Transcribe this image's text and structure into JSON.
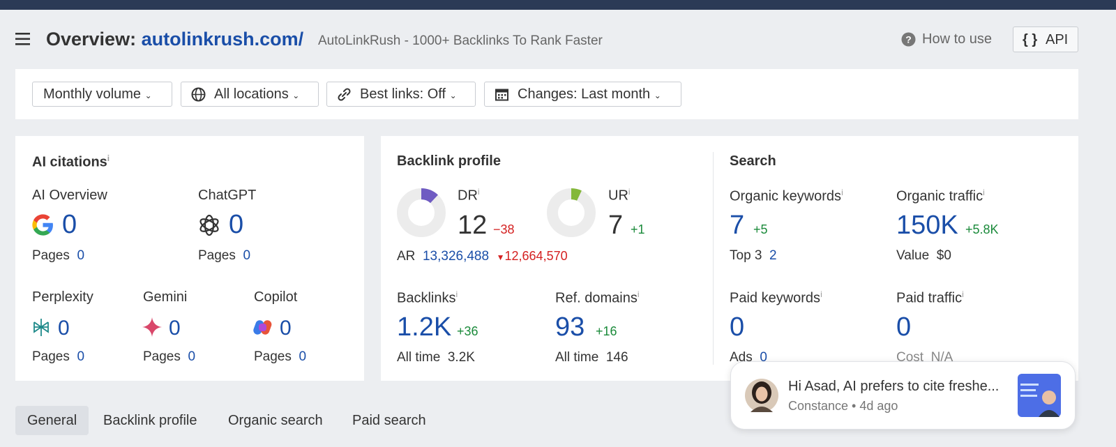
{
  "header": {
    "title_prefix": "Overview:",
    "domain": "autolinkrush.com/",
    "subtitle": "AutoLinkRush - 1000+ Backlinks To Rank Faster",
    "how_to_use": "How to use",
    "api": "API"
  },
  "info": "i",
  "filters": [
    "Monthly volume",
    "All locations",
    "Best links: Off",
    "Changes: Last month"
  ],
  "ai_citations": {
    "title": "AI citations",
    "items": [
      {
        "name": "AI Overview",
        "value": "0",
        "pages_label": "Pages",
        "pages": "0"
      },
      {
        "name": "ChatGPT",
        "value": "0",
        "pages_label": "Pages",
        "pages": "0"
      },
      {
        "name": "Perplexity",
        "value": "0",
        "pages_label": "Pages",
        "pages": "0"
      },
      {
        "name": "Gemini",
        "value": "0",
        "pages_label": "Pages",
        "pages": "0"
      },
      {
        "name": "Copilot",
        "value": "0",
        "pages_label": "Pages",
        "pages": "0"
      }
    ]
  },
  "backlink_profile": {
    "title": "Backlink profile",
    "dr": {
      "label": "DR",
      "value": 12,
      "change": "−38"
    },
    "ur": {
      "label": "UR",
      "value": 7,
      "change": "+1"
    },
    "ar": {
      "label": "AR",
      "value": "13,326,488",
      "change": "12,664,570"
    },
    "backlinks": {
      "label": "Backlinks",
      "value": "1.2K",
      "change": "+36",
      "sub_label": "All time",
      "sub_value": "3.2K"
    },
    "ref_domains": {
      "label": "Ref. domains",
      "value": "93",
      "change": "+16",
      "sub_label": "All time",
      "sub_value": "146"
    }
  },
  "search": {
    "title": "Search",
    "organic_keywords": {
      "label": "Organic keywords",
      "value": "7",
      "change": "+5",
      "sub_label": "Top 3",
      "sub_value": "2"
    },
    "organic_traffic": {
      "label": "Organic traffic",
      "value": "150K",
      "change": "+5.8K",
      "sub_label": "Value",
      "sub_value": "$0"
    },
    "paid_keywords": {
      "label": "Paid keywords",
      "value": "0",
      "sub_label": "Ads",
      "sub_value": "0"
    },
    "paid_traffic": {
      "label": "Paid traffic",
      "value": "0",
      "sub_label": "Cost",
      "sub_value": "N/A"
    }
  },
  "tabs": [
    "General",
    "Backlink profile",
    "Organic search",
    "Paid search"
  ],
  "notification": {
    "message": "Hi Asad,  AI prefers to cite freshe...",
    "meta": "Constance • 4d ago"
  }
}
